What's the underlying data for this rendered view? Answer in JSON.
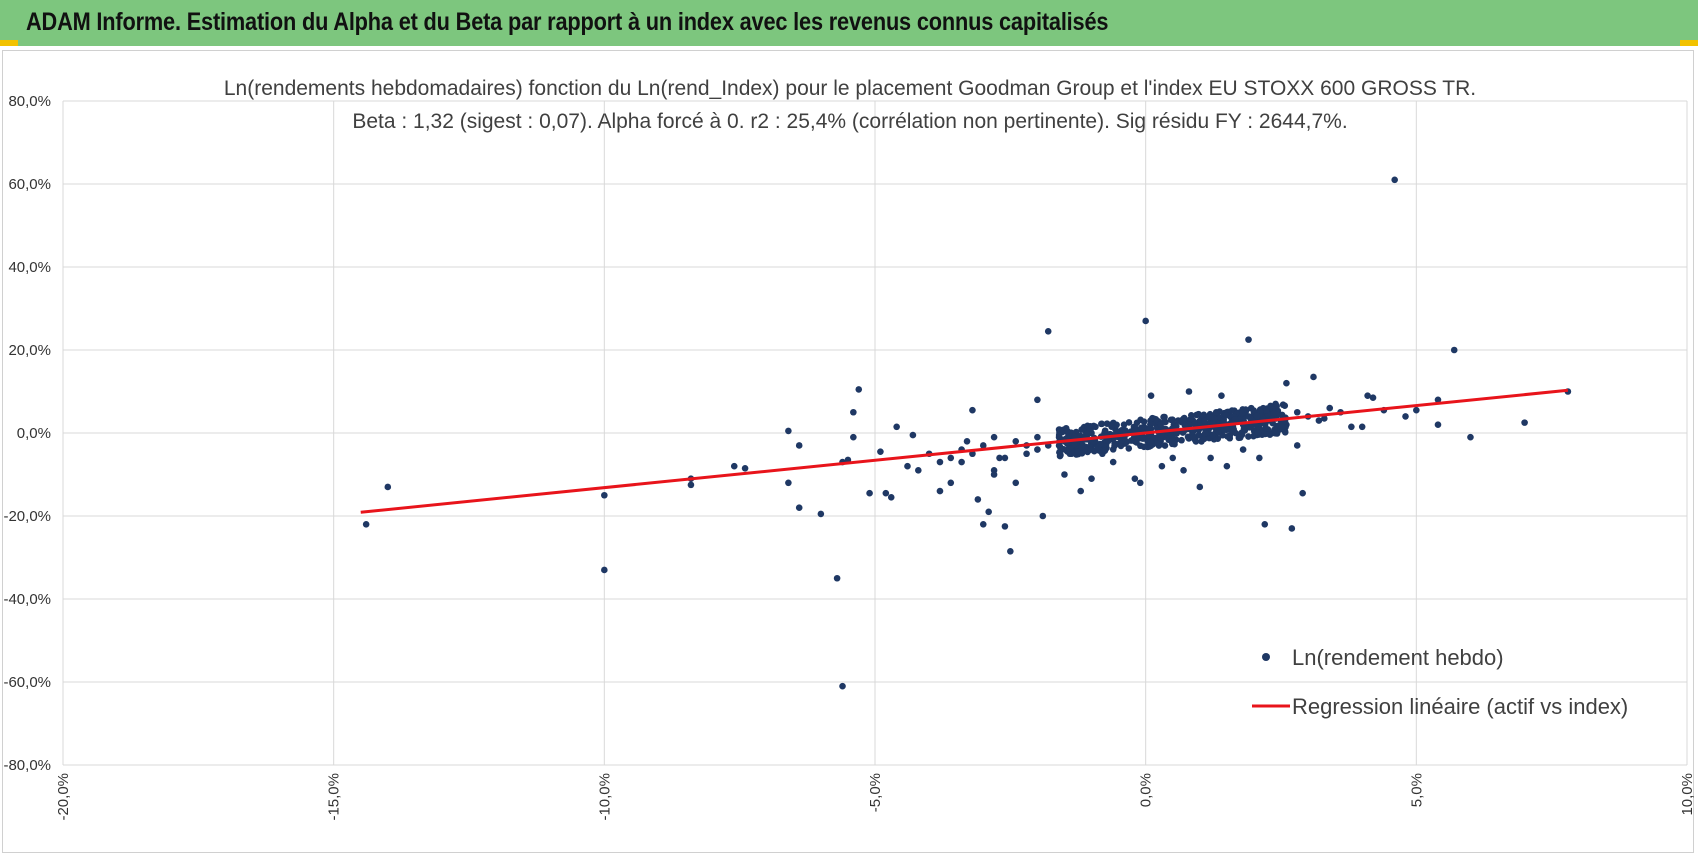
{
  "banner": {
    "title": "ADAM Informe. Estimation du Alpha et du Beta par rapport à un index avec les revenus connus capitalisés"
  },
  "colors": {
    "banner_bg": "#7dc67e",
    "accent_corner": "#f2c200",
    "points": "#1f3864",
    "regression": "#e8141b",
    "grid": "#d9d9d9"
  },
  "chart_data": {
    "type": "scatter",
    "title_lines": [
      "Ln(rendements hebdomadaires) fonction du Ln(rend_Index) pour le placement Goodman Group et l'index EU STOXX 600 GROSS TR.",
      "Beta : 1,32 (sigest : 0,07).  Alpha forcé à 0. r2 : 25,4% (corrélation non pertinente). Sig résidu FY : 2644,7%."
    ],
    "xlim": [
      -20,
      10
    ],
    "ylim": [
      -80,
      80
    ],
    "x_ticks": [
      -20,
      -15,
      -10,
      -5,
      0,
      5,
      10
    ],
    "y_ticks": [
      80,
      60,
      40,
      20,
      0,
      -20,
      -40,
      -60,
      -80
    ],
    "x_tick_labels": [
      "-20,0%",
      "-15,0%",
      "-10,0%",
      "-5,0%",
      "0,0%",
      "5,0%",
      "10,0%"
    ],
    "y_tick_labels": [
      "80,0%",
      "60,0%",
      "40,0%",
      "20,0%",
      "0,0%",
      "-20,0%",
      "-40,0%",
      "-60,0%",
      "-80,0%"
    ],
    "xlabel": "",
    "ylabel": "",
    "legend_position": "bottom-right",
    "series": [
      {
        "name": "Ln(rendement hebdo)",
        "kind": "points",
        "points": [
          [
            -14.4,
            -22
          ],
          [
            -14.0,
            -13
          ],
          [
            -10.0,
            -33
          ],
          [
            -10.0,
            -15
          ],
          [
            -8.4,
            -11
          ],
          [
            -8.4,
            -12.5
          ],
          [
            -7.6,
            -8
          ],
          [
            -7.4,
            -8.5
          ],
          [
            -6.6,
            0.5
          ],
          [
            -6.6,
            -12
          ],
          [
            -6.4,
            -3
          ],
          [
            -6.4,
            -18
          ],
          [
            -6.0,
            -19.5
          ],
          [
            -5.7,
            -35
          ],
          [
            -5.6,
            -61
          ],
          [
            -5.6,
            -7
          ],
          [
            -5.5,
            -6.5
          ],
          [
            -5.4,
            -1
          ],
          [
            -5.4,
            5
          ],
          [
            -5.3,
            10.5
          ],
          [
            -5.1,
            -14.5
          ],
          [
            -4.9,
            -4.5
          ],
          [
            -4.8,
            -14.5
          ],
          [
            -4.7,
            -15.5
          ],
          [
            -4.6,
            1.5
          ],
          [
            -4.4,
            -8
          ],
          [
            -4.3,
            -0.5
          ],
          [
            -4.2,
            -9
          ],
          [
            -4.0,
            -5
          ],
          [
            -3.8,
            -7
          ],
          [
            -3.8,
            -14
          ],
          [
            -3.6,
            -12
          ],
          [
            -3.4,
            -4
          ],
          [
            -3.3,
            -2
          ],
          [
            -3.2,
            5.5
          ],
          [
            -3.1,
            -16
          ],
          [
            -3.0,
            -22
          ],
          [
            -2.9,
            -19
          ],
          [
            -2.8,
            -9
          ],
          [
            -2.8,
            -10
          ],
          [
            -2.7,
            -6
          ],
          [
            -2.6,
            -22.5
          ],
          [
            -2.5,
            -28.5
          ],
          [
            -2.4,
            -12
          ],
          [
            -2.2,
            -3
          ],
          [
            -2.0,
            8
          ],
          [
            -1.9,
            -20
          ],
          [
            -1.8,
            24.5
          ],
          [
            -1.6,
            -3
          ],
          [
            -1.5,
            -10
          ],
          [
            -1.2,
            -14
          ],
          [
            -1.0,
            -11
          ],
          [
            -0.8,
            -5
          ],
          [
            -0.6,
            -7
          ],
          [
            -0.4,
            2
          ],
          [
            -0.2,
            -11
          ],
          [
            -0.1,
            -12
          ],
          [
            0.0,
            27
          ],
          [
            0.1,
            -3
          ],
          [
            0.1,
            9
          ],
          [
            0.3,
            -8
          ],
          [
            0.5,
            -6
          ],
          [
            0.7,
            -9
          ],
          [
            0.8,
            10
          ],
          [
            1.0,
            -13
          ],
          [
            1.2,
            -6
          ],
          [
            1.4,
            9
          ],
          [
            1.5,
            -8
          ],
          [
            1.8,
            -4
          ],
          [
            1.9,
            22.5
          ],
          [
            2.1,
            -6
          ],
          [
            2.2,
            -22
          ],
          [
            2.4,
            7
          ],
          [
            2.6,
            12
          ],
          [
            2.7,
            -23
          ],
          [
            2.8,
            -3
          ],
          [
            2.9,
            -14.5
          ],
          [
            3.1,
            13.5
          ],
          [
            3.3,
            3.5
          ],
          [
            3.6,
            5
          ],
          [
            3.8,
            1.5
          ],
          [
            4.0,
            1.5
          ],
          [
            4.1,
            9
          ],
          [
            4.2,
            8.5
          ],
          [
            4.4,
            5.5
          ],
          [
            4.6,
            61
          ],
          [
            4.8,
            4
          ],
          [
            5.0,
            5.5
          ],
          [
            5.4,
            2
          ],
          [
            5.4,
            8
          ],
          [
            5.7,
            20
          ],
          [
            6.0,
            -1
          ],
          [
            7.0,
            2.5
          ],
          [
            7.8,
            10
          ],
          [
            -3.6,
            -6
          ],
          [
            -3.4,
            -7
          ],
          [
            -3.2,
            -5
          ],
          [
            -3.0,
            -3
          ],
          [
            -2.8,
            -1
          ],
          [
            -2.6,
            -6
          ],
          [
            -2.4,
            -2
          ],
          [
            -2.2,
            -5
          ],
          [
            -2.0,
            -4
          ],
          [
            -1.8,
            -3
          ],
          [
            -1.6,
            -1
          ],
          [
            -1.4,
            -5
          ],
          [
            -1.2,
            -2
          ],
          [
            -1.0,
            0
          ],
          [
            -0.8,
            -3
          ],
          [
            -0.6,
            -1
          ],
          [
            -0.4,
            0
          ],
          [
            -0.2,
            -2
          ],
          [
            0.0,
            1
          ],
          [
            0.2,
            2
          ],
          [
            0.4,
            -1
          ],
          [
            0.6,
            3
          ],
          [
            0.8,
            1
          ],
          [
            1.0,
            2
          ],
          [
            1.2,
            4
          ],
          [
            1.4,
            1
          ],
          [
            1.6,
            3
          ],
          [
            1.8,
            2
          ],
          [
            2.0,
            5
          ],
          [
            2.2,
            3
          ],
          [
            2.4,
            4
          ],
          [
            2.6,
            2
          ],
          [
            2.8,
            5
          ],
          [
            3.0,
            4
          ],
          [
            3.2,
            3
          ],
          [
            3.4,
            6
          ],
          [
            -2.0,
            -1
          ],
          [
            -1.5,
            -2
          ],
          [
            -1.0,
            -3
          ],
          [
            -0.5,
            -1
          ],
          [
            0.5,
            0
          ],
          [
            1.5,
            2
          ],
          [
            2.5,
            3
          ]
        ]
      },
      {
        "name": "Regression linéaire (actif vs index)",
        "kind": "line",
        "points": [
          [
            -14.5,
            -19.1
          ],
          [
            7.8,
            10.3
          ]
        ]
      }
    ]
  }
}
